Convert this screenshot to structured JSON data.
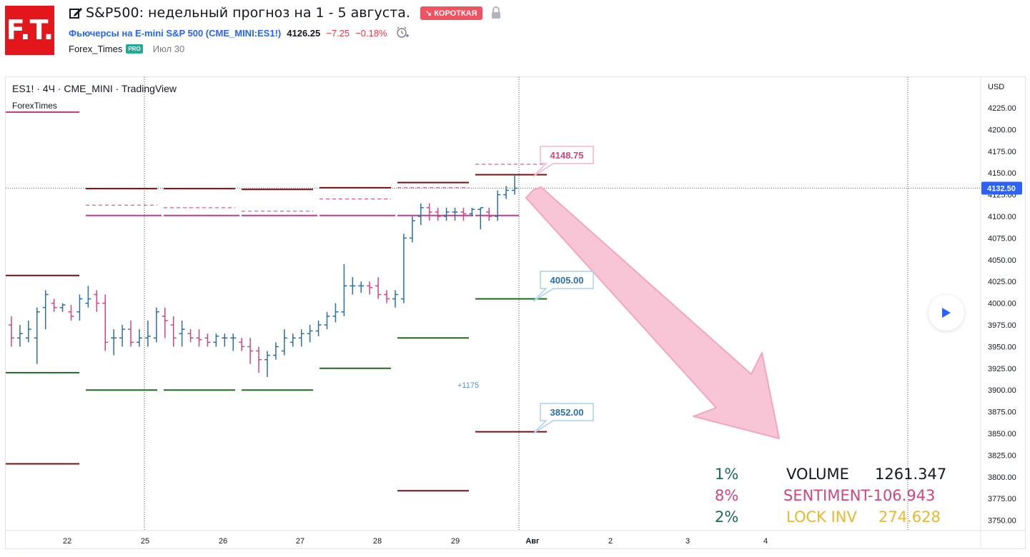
{
  "header": {
    "logo_text": "F.T.",
    "title": "S&P500: недельный прогноз на 1 - 5 августа.",
    "direction_badge": "↘ КОРОТКАЯ",
    "symbol_name": "Фьючерсы на E-mini S&P 500 (CME_MINI:ES1!)",
    "last_price": "4126.25",
    "change": "−7.25",
    "change_percent": "−0.18%",
    "author": "Forex_Times",
    "author_badge": "PRO",
    "date": "Июл 30"
  },
  "chart": {
    "legend_symbol": "ES1! · 4Ч · CME_MINI · TradingView",
    "legend_indicator": "ForexTimes",
    "currency": "USD",
    "current_price_label": "4132.50",
    "annotation_count": "+1175",
    "callouts": [
      {
        "price": 4148.75,
        "text": "4148.75",
        "type": "up"
      },
      {
        "price": 4005.0,
        "text": "4005.00",
        "type": "down"
      },
      {
        "price": 3852.0,
        "text": "3852.00",
        "type": "down"
      }
    ],
    "price_ticks": [
      "4225.00",
      "4200.00",
      "4175.00",
      "4150.00",
      "4125.00",
      "4100.00",
      "4075.00",
      "4050.00",
      "4025.00",
      "4000.00",
      "3975.00",
      "3950.00",
      "3925.00",
      "3900.00",
      "3875.00",
      "3850.00",
      "3825.00",
      "3800.00",
      "3775.00",
      "3750.00"
    ],
    "time_ticks": [
      "22",
      "25",
      "26",
      "27",
      "28",
      "29",
      "Авг",
      "2",
      "3",
      "4"
    ],
    "colors": {
      "up": "#2a6fa8",
      "down": "#d0457f",
      "resist": "#7a0f14",
      "support": "#1e6b1e",
      "pivot": "#c83a8a",
      "arrow": "#f6b8cd",
      "callout_up": "#d0457f",
      "callout_down": "#2a6fa8"
    }
  },
  "stats": [
    {
      "pct": "1%",
      "label": "VOLUME",
      "value": "1261.347",
      "pct_color": "#1e6b54",
      "label_color": "#131722"
    },
    {
      "pct": "8%",
      "label": "SENTIMENT",
      "value": "-106.943",
      "pct_color": "#d0457f",
      "label_color": "#d0457f"
    },
    {
      "pct": "2%",
      "label": "LOCK INV",
      "value": "274.628",
      "pct_color": "#1e6b54",
      "label_color": "#e8b830"
    }
  ],
  "chart_data": {
    "type": "candlestick",
    "timeframe": "4H",
    "unit": "USD",
    "ylim": [
      3740,
      4240
    ],
    "x_ticks": [
      "22",
      "25",
      "26",
      "27",
      "28",
      "29",
      "Авг",
      "2",
      "3",
      "4"
    ],
    "last_price": 4132.5,
    "forecast_target_levels": [
      4148.75,
      4005.0,
      3852.0
    ],
    "bars": [
      [
        3975,
        3985,
        3950,
        3960
      ],
      [
        3960,
        3975,
        3950,
        3965
      ],
      [
        3960,
        3980,
        3955,
        3970
      ],
      [
        3960,
        3995,
        3930,
        3990
      ],
      [
        3995,
        4015,
        3970,
        4010
      ],
      [
        4000,
        4005,
        3990,
        3995
      ],
      [
        3995,
        4000,
        3990,
        3998
      ],
      [
        3990,
        3998,
        3980,
        3985
      ],
      [
        3990,
        4010,
        3980,
        4005
      ],
      [
        4000,
        4020,
        3995,
        4005
      ],
      [
        4010,
        4015,
        3990,
        4000
      ],
      [
        4000,
        4010,
        3945,
        3955
      ],
      [
        3960,
        3970,
        3940,
        3960
      ],
      [
        3960,
        3975,
        3950,
        3970
      ],
      [
        3970,
        3980,
        3950,
        3955
      ],
      [
        3955,
        3970,
        3950,
        3960
      ],
      [
        3960,
        3980,
        3950,
        3962
      ],
      [
        3960,
        3995,
        3955,
        3990
      ],
      [
        3985,
        3995,
        3960,
        3980
      ],
      [
        3975,
        3985,
        3950,
        3960
      ],
      [
        3965,
        3980,
        3950,
        3970
      ],
      [
        3965,
        3970,
        3955,
        3960
      ],
      [
        3960,
        3970,
        3950,
        3958
      ],
      [
        3960,
        3965,
        3950,
        3955
      ],
      [
        3955,
        3965,
        3950,
        3962
      ],
      [
        3960,
        3965,
        3950,
        3960
      ],
      [
        3960,
        3965,
        3945,
        3960
      ],
      [
        3955,
        3960,
        3945,
        3950
      ],
      [
        3950,
        3960,
        3930,
        3945
      ],
      [
        3945,
        3950,
        3920,
        3935
      ],
      [
        3935,
        3945,
        3915,
        3940
      ],
      [
        3940,
        3955,
        3935,
        3950
      ],
      [
        3945,
        3970,
        3940,
        3960
      ],
      [
        3955,
        3965,
        3950,
        3960
      ],
      [
        3960,
        3970,
        3950,
        3965
      ],
      [
        3965,
        3975,
        3955,
        3968
      ],
      [
        3968,
        3980,
        3962,
        3975
      ],
      [
        3975,
        3990,
        3970,
        3985
      ],
      [
        3985,
        4000,
        3978,
        3990
      ],
      [
        3990,
        4045,
        3985,
        4020
      ],
      [
        4020,
        4030,
        4010,
        4020
      ],
      [
        4020,
        4025,
        4012,
        4020
      ],
      [
        4020,
        4025,
        4010,
        4018
      ],
      [
        4020,
        4030,
        4005,
        4010
      ],
      [
        4010,
        4015,
        4000,
        4005
      ],
      [
        4005,
        4015,
        3995,
        4010
      ],
      [
        4005,
        4080,
        4000,
        4075
      ],
      [
        4075,
        4100,
        4070,
        4095
      ],
      [
        4100,
        4115,
        4090,
        4110
      ],
      [
        4110,
        4115,
        4095,
        4105
      ],
      [
        4105,
        4110,
        4095,
        4100
      ],
      [
        4100,
        4110,
        4095,
        4105
      ],
      [
        4105,
        4110,
        4095,
        4105
      ],
      [
        4105,
        4110,
        4095,
        4103
      ],
      [
        4103,
        4110,
        4100,
        4108
      ],
      [
        4108,
        4110,
        4085,
        4110
      ],
      [
        4105,
        4110,
        4095,
        4100
      ],
      [
        4100,
        4130,
        4095,
        4125
      ],
      [
        4125,
        4135,
        4120,
        4130
      ],
      [
        4130,
        4148,
        4125,
        4132.5
      ]
    ],
    "levels": [
      {
        "from": 0,
        "to": 1,
        "resist_upper": 4032,
        "support": 3920,
        "resist_lower": 3815
      },
      {
        "from": 1,
        "to": 2,
        "resist_upper": 4132,
        "pivot_dash": 4113,
        "pivot": 4101,
        "support": 3900
      },
      {
        "from": 2,
        "to": 3,
        "resist_upper": 4132,
        "pivot_dash": 4110,
        "pivot": 4101,
        "support": 3900
      },
      {
        "from": 3,
        "to": 4,
        "resist_upper": 4131,
        "pivot_dash": 4106,
        "pivot": 4101,
        "support": 3900
      },
      {
        "from": 4,
        "to": 5,
        "resist_upper": 4133,
        "pivot_dash": 4120,
        "pivot": 4101,
        "support": 3925
      },
      {
        "from": 5,
        "to": 6,
        "resist_upper": 4139,
        "pivot_dash": 4133,
        "pivot": 4101,
        "support": 3960,
        "resist_lower": 3784
      },
      {
        "from": 6,
        "to": 7,
        "resist_upper": 4148,
        "pivot_dash": 4160,
        "pivot": 4101,
        "support": 4005,
        "resist_lower": 3852
      }
    ]
  }
}
